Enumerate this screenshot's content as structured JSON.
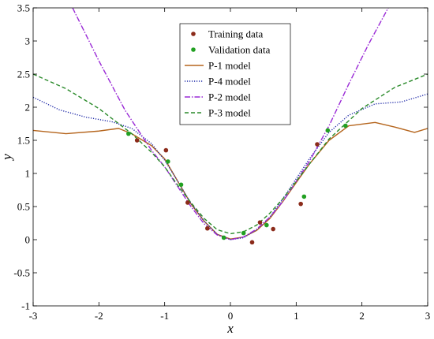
{
  "chart_data": {
    "type": "line",
    "title": "",
    "xlabel": "x",
    "ylabel": "y",
    "xlim": [
      -3,
      3
    ],
    "ylim": [
      -1,
      3.5
    ],
    "xticks": [
      -3,
      -2,
      -1,
      0,
      1,
      2,
      3
    ],
    "yticks": [
      -1,
      -0.5,
      0,
      0.5,
      1,
      1.5,
      2,
      2.5,
      3,
      3.5
    ],
    "grid": false,
    "legend_position": "top-center",
    "series": [
      {
        "name": "Training data",
        "kind": "scatter",
        "color": "#8b2b1a",
        "x": [
          -1.42,
          -0.98,
          -0.65,
          -0.35,
          0.33,
          0.45,
          0.65,
          1.07,
          1.32
        ],
        "y": [
          1.5,
          1.35,
          0.56,
          0.17,
          -0.04,
          0.26,
          0.16,
          0.54,
          1.44
        ]
      },
      {
        "name": "Validation data",
        "kind": "scatter",
        "color": "#22a022",
        "x": [
          -1.55,
          -0.95,
          -0.75,
          -0.1,
          0.2,
          0.55,
          1.12,
          1.48,
          1.75
        ],
        "y": [
          1.6,
          1.18,
          0.83,
          0.03,
          0.1,
          0.22,
          0.65,
          1.65,
          1.72
        ]
      },
      {
        "name": "P-1 model",
        "kind": "line",
        "color": "#b5651d",
        "dash": "solid",
        "x": [
          -3,
          -2.5,
          -2,
          -1.7,
          -1.5,
          -1.2,
          -1,
          -0.8,
          -0.6,
          -0.4,
          -0.2,
          0,
          0.2,
          0.4,
          0.6,
          0.8,
          1,
          1.2,
          1.5,
          1.8,
          2.2,
          2.5,
          2.8,
          3
        ],
        "y": [
          1.65,
          1.6,
          1.64,
          1.68,
          1.6,
          1.42,
          1.22,
          0.88,
          0.54,
          0.28,
          0.08,
          0.01,
          0.04,
          0.14,
          0.32,
          0.58,
          0.86,
          1.14,
          1.5,
          1.72,
          1.77,
          1.7,
          1.62,
          1.68
        ]
      },
      {
        "name": "P-4 model",
        "kind": "line",
        "color": "#1f2aa8",
        "dash": "dotted",
        "x": [
          -3,
          -2.6,
          -2.2,
          -1.8,
          -1.5,
          -1.2,
          -1,
          -0.8,
          -0.6,
          -0.4,
          -0.2,
          0,
          0.2,
          0.4,
          0.6,
          0.8,
          1,
          1.2,
          1.5,
          1.8,
          2.2,
          2.6,
          3
        ],
        "y": [
          2.15,
          1.96,
          1.85,
          1.78,
          1.68,
          1.45,
          1.2,
          0.88,
          0.55,
          0.28,
          0.08,
          0.0,
          0.03,
          0.15,
          0.34,
          0.62,
          0.92,
          1.22,
          1.62,
          1.88,
          2.05,
          2.08,
          2.2
        ]
      },
      {
        "name": "P-2 model",
        "kind": "line",
        "color": "#9a2ad6",
        "dash": "dashdot",
        "x": [
          -2.4,
          -2,
          -1.6,
          -1.2,
          -1,
          -0.8,
          -0.6,
          -0.4,
          -0.2,
          0,
          0.2,
          0.4,
          0.6,
          0.8,
          1,
          1.2,
          1.5,
          1.8,
          2.1,
          2.4
        ],
        "y": [
          3.5,
          2.7,
          1.95,
          1.35,
          1.1,
          0.8,
          0.5,
          0.24,
          0.07,
          0.0,
          0.04,
          0.16,
          0.34,
          0.58,
          0.88,
          1.18,
          1.72,
          2.35,
          2.95,
          3.5
        ]
      },
      {
        "name": "P-3 model",
        "kind": "line",
        "color": "#2a8a2a",
        "dash": "dashed",
        "x": [
          -3,
          -2.5,
          -2,
          -1.5,
          -1.2,
          -1,
          -0.8,
          -0.6,
          -0.4,
          -0.2,
          0,
          0.2,
          0.4,
          0.6,
          0.8,
          1,
          1.2,
          1.5,
          2,
          2.5,
          3
        ],
        "y": [
          2.5,
          2.28,
          1.98,
          1.6,
          1.32,
          1.1,
          0.82,
          0.56,
          0.32,
          0.15,
          0.09,
          0.12,
          0.22,
          0.4,
          0.62,
          0.88,
          1.14,
          1.52,
          1.98,
          2.3,
          2.5
        ]
      }
    ]
  }
}
